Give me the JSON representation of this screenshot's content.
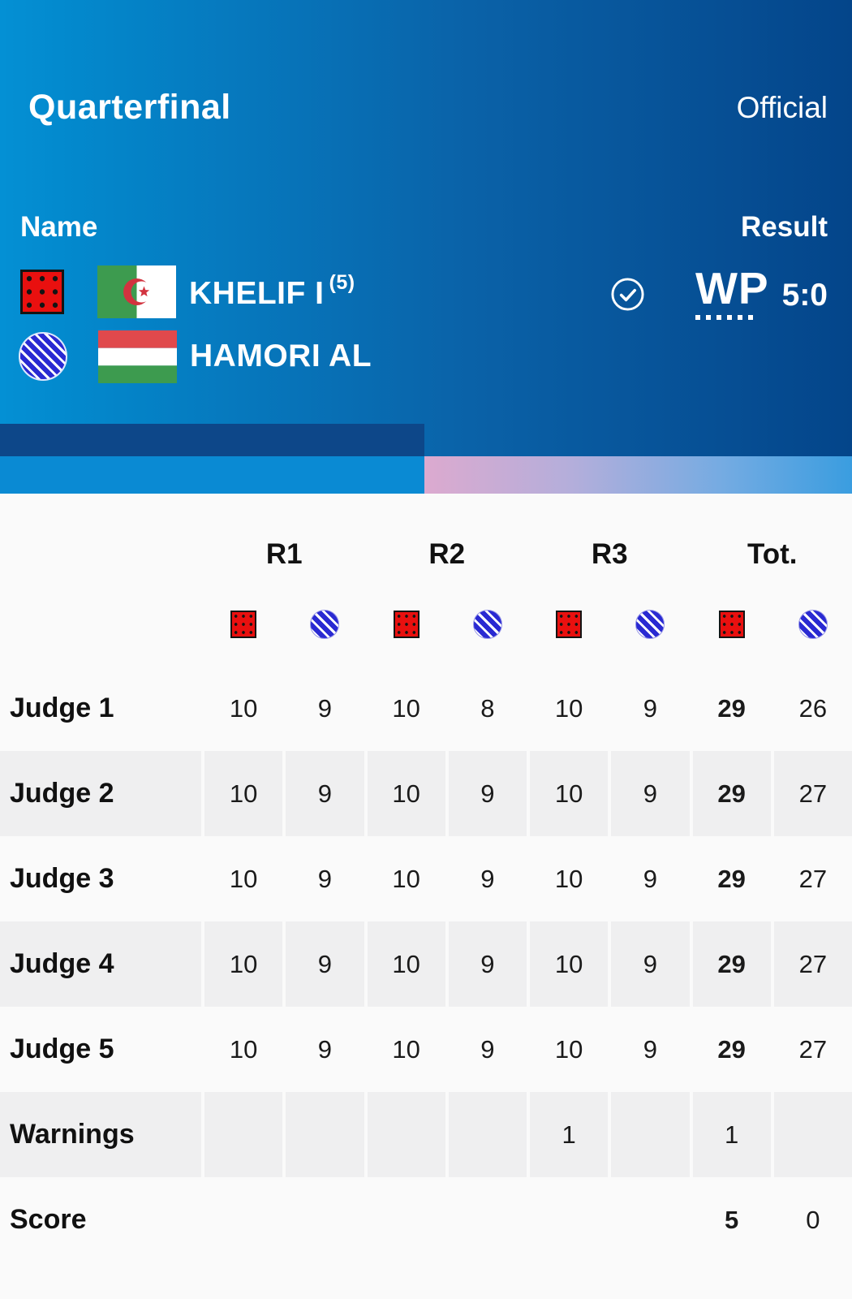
{
  "header": {
    "stage": "Quarterfinal",
    "status": "Official",
    "name_label": "Name",
    "result_label": "Result",
    "red_boxer": {
      "name": "KHELIF I",
      "seed": "(5)",
      "flag": "algeria-flag",
      "corner_icon": "red-corner-icon"
    },
    "blue_boxer": {
      "name": "HAMORI AL",
      "flag": "hungary-flag",
      "corner_icon": "blue-corner-icon"
    },
    "result": {
      "verdict": "WP",
      "score": "5:0",
      "winner_icon": "check-circle-icon"
    }
  },
  "table": {
    "round_headers": [
      "R1",
      "R2",
      "R3",
      "Tot."
    ],
    "corner_sequence": [
      "red",
      "blue"
    ],
    "rows": [
      {
        "label": "Judge 1",
        "shaded": false,
        "values": [
          "10",
          "9",
          "10",
          "8",
          "10",
          "9",
          "29",
          "26"
        ],
        "bold": [
          6
        ]
      },
      {
        "label": "Judge 2",
        "shaded": true,
        "values": [
          "10",
          "9",
          "10",
          "9",
          "10",
          "9",
          "29",
          "27"
        ],
        "bold": [
          6
        ]
      },
      {
        "label": "Judge 3",
        "shaded": false,
        "values": [
          "10",
          "9",
          "10",
          "9",
          "10",
          "9",
          "29",
          "27"
        ],
        "bold": [
          6
        ]
      },
      {
        "label": "Judge 4",
        "shaded": true,
        "values": [
          "10",
          "9",
          "10",
          "9",
          "10",
          "9",
          "29",
          "27"
        ],
        "bold": [
          6
        ]
      },
      {
        "label": "Judge 5",
        "shaded": false,
        "values": [
          "10",
          "9",
          "10",
          "9",
          "10",
          "9",
          "29",
          "27"
        ],
        "bold": [
          6
        ]
      },
      {
        "label": "Warnings",
        "shaded": true,
        "values": [
          "",
          "",
          "",
          "",
          "1",
          "",
          "1",
          ""
        ],
        "bold": []
      },
      {
        "label": "Score",
        "shaded": false,
        "values": [
          "",
          "",
          "",
          "",
          "",
          "",
          "5",
          "0"
        ],
        "bold": [
          6
        ]
      }
    ]
  },
  "colors": {
    "header_gradient_start": "#0389cd",
    "header_gradient_end": "#04458a",
    "navy_band": "#0d4789",
    "blue_band": "#0a8ad3",
    "pink_band_start": "#dcaacf",
    "pink_band_end": "#3a9de0",
    "red_corner": "#e9100f",
    "blue_corner": "#2a2ad2",
    "row_shade": "#efeff0",
    "page_background": "#fafafa",
    "text": "#151515"
  }
}
